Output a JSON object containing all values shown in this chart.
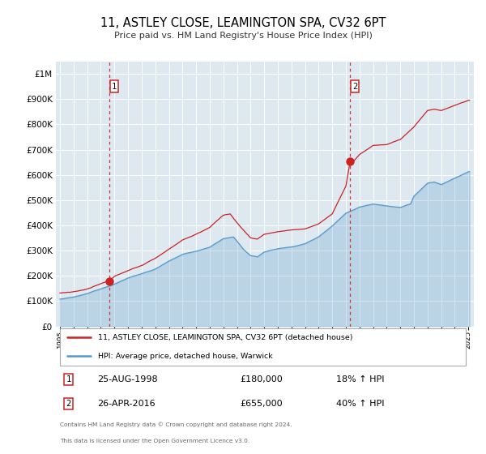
{
  "title": "11, ASTLEY CLOSE, LEAMINGTON SPA, CV32 6PT",
  "subtitle": "Price paid vs. HM Land Registry's House Price Index (HPI)",
  "legend_line1": "11, ASTLEY CLOSE, LEAMINGTON SPA, CV32 6PT (detached house)",
  "legend_line2": "HPI: Average price, detached house, Warwick",
  "sale1_date": "25-AUG-1998",
  "sale1_price": 180000,
  "sale1_pct": "18%",
  "sale2_date": "26-APR-2016",
  "sale2_price": 655000,
  "sale2_pct": "40%",
  "footer1": "Contains HM Land Registry data © Crown copyright and database right 2024.",
  "footer2": "This data is licensed under the Open Government Licence v3.0.",
  "hpi_color": "#5599cc",
  "price_color": "#cc2222",
  "marker_color": "#cc2222",
  "vline_color": "#cc3333",
  "bg_color": "#dde8f0",
  "grid_color": "#ffffff",
  "ylim_max": 1050000,
  "ylim_min": 0,
  "sale1_year": 1998.65,
  "sale2_year": 2016.32,
  "sale1_marker_price": 180000,
  "sale2_marker_price": 655000,
  "xmin": 1994.7,
  "xmax": 2025.4
}
